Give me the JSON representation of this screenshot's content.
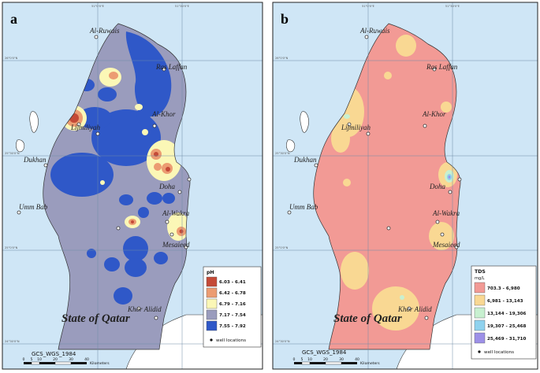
{
  "panels": [
    {
      "letter": "a",
      "colors": {
        "sea": "#cfe6f6",
        "land": "#9a9cbd"
      },
      "legend": {
        "title": "pH",
        "items": [
          {
            "label": "6.03 - 6.41",
            "color": "#c44a37"
          },
          {
            "label": "6.42 - 6.78",
            "color": "#ec9c72"
          },
          {
            "label": "6.79 - 7.16",
            "color": "#fbf7b6"
          },
          {
            "label": "7.17 - 7.54",
            "color": "#9a9cbd"
          },
          {
            "label": "7.55 - 7.92",
            "color": "#2f58c8"
          }
        ],
        "well_label": "well locations"
      }
    },
    {
      "letter": "b",
      "colors": {
        "sea": "#cfe6f6",
        "land": "#f29a95"
      },
      "legend": {
        "title": "TDS",
        "subtitle": "mg/L",
        "items": [
          {
            "label": "703.3 - 6,980",
            "color": "#f29a95"
          },
          {
            "label": "6,981 - 13,143",
            "color": "#f9d893"
          },
          {
            "label": "13,144 - 19,306",
            "color": "#c8f0d0"
          },
          {
            "label": "19,307 - 25,468",
            "color": "#8fd2ee"
          },
          {
            "label": "25,469 - 31,710",
            "color": "#9d90e8"
          }
        ],
        "well_label": "well locations"
      }
    }
  ],
  "places": {
    "ruwais": "Al-Ruwais",
    "laffan": "Ras Laffan",
    "lijmiliyah": "Lijmiliyah",
    "khor": "Al-Khor",
    "dukhan": "Dukhan",
    "doha": "Doha",
    "umm_bab": "Umm Bab",
    "wakra": "Al-Wakra",
    "mesaieed": "Mesaieed",
    "khor_alidid": "Khor Alidid"
  },
  "country_label": "State of Qatar",
  "crs_label": "GCS_WGS_1984",
  "scale": {
    "ticks": [
      "0",
      "5",
      "10",
      "20",
      "30",
      "40"
    ],
    "unit": "Kilometers"
  },
  "graticule": {
    "lon": [
      "51°0'0\"E",
      "51°30'0\"E"
    ],
    "lat": [
      "26°0'0\"N",
      "25°30'0\"N",
      "25°0'0\"N",
      "24°30'0\"N"
    ]
  }
}
